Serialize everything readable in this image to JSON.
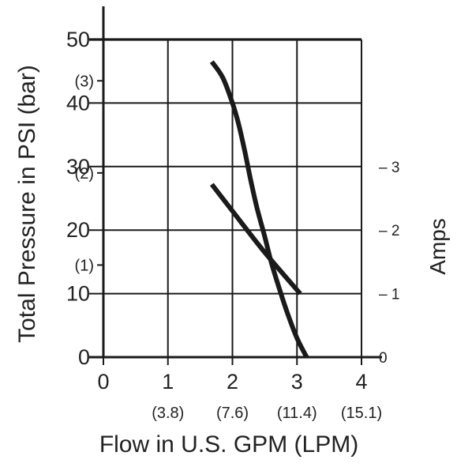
{
  "chart_data": {
    "type": "line",
    "title": "",
    "xlabel": "Flow in U.S. GPM (LPM)",
    "ylabel": "Total Pressure in PSI (bar)",
    "y2label": "Amps",
    "xlim": [
      0,
      4
    ],
    "ylim": [
      0,
      50
    ],
    "y2lim": [
      0,
      5
    ],
    "grid": true,
    "legend": "none",
    "x_ticks": [
      {
        "value": 0,
        "label": "0",
        "sub": ""
      },
      {
        "value": 1,
        "label": "1",
        "sub": "(3.8)"
      },
      {
        "value": 2,
        "label": "2",
        "sub": "(7.6)"
      },
      {
        "value": 3,
        "label": "3",
        "sub": "(11.4)"
      },
      {
        "value": 4,
        "label": "4",
        "sub": "(15.1)"
      }
    ],
    "y_ticks": [
      {
        "value": 0,
        "label": "0"
      },
      {
        "value": 10,
        "label": "10"
      },
      {
        "value": 20,
        "label": "20"
      },
      {
        "value": 30,
        "label": "30"
      },
      {
        "value": 40,
        "label": "40"
      },
      {
        "value": 50,
        "label": "50"
      }
    ],
    "y_bar_ticks": [
      {
        "value": 14.5,
        "label": "(1)"
      },
      {
        "value": 29.0,
        "label": "(2)"
      },
      {
        "value": 43.5,
        "label": "(3)"
      }
    ],
    "y2_ticks": [
      {
        "value": 0,
        "label": "0"
      },
      {
        "value": 1,
        "label": "– 1"
      },
      {
        "value": 2,
        "label": "– 2"
      },
      {
        "value": 3,
        "label": "– 3"
      }
    ],
    "series": [
      {
        "axis": "left",
        "x": [
          1.68,
          1.85,
          2.0,
          2.1,
          2.2,
          2.28,
          2.38,
          2.5,
          2.6,
          2.72,
          2.85,
          3.0,
          3.15
        ],
        "y": [
          46.5,
          44.0,
          40.0,
          36.5,
          32.0,
          28.0,
          23.5,
          19.0,
          15.0,
          11.0,
          7.0,
          3.0,
          0
        ]
      },
      {
        "axis": "right",
        "x": [
          1.68,
          2.0,
          2.5,
          3.05
        ],
        "y": [
          2.72,
          2.3,
          1.65,
          1.0
        ]
      }
    ],
    "line_color": "#1a1a1a",
    "axis_color": "#1a1a1a"
  }
}
